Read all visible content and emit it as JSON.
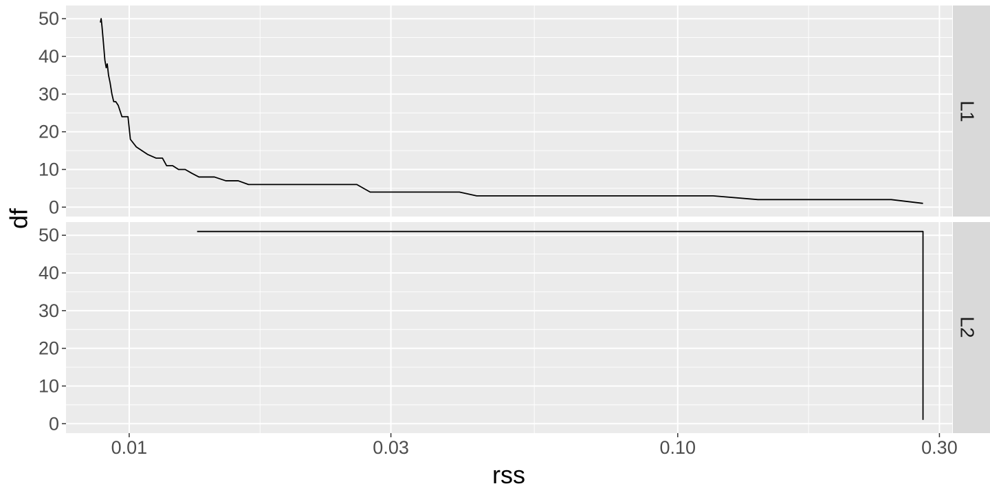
{
  "chart_data": {
    "type": "line",
    "xlabel": "rss",
    "ylabel": "df",
    "x_scale": "log10",
    "x_ticks": [
      0.01,
      0.03,
      0.1,
      0.3
    ],
    "x_tick_labels": [
      "0.01",
      "0.03",
      "0.10",
      "0.30"
    ],
    "y_ticks": [
      0,
      10,
      20,
      30,
      40,
      50
    ],
    "y_tick_labels": [
      "0",
      "10",
      "20",
      "30",
      "40",
      "50"
    ],
    "xlim": [
      0.00767,
      0.3165
    ],
    "ylim": [
      -2.5,
      53.5
    ],
    "grid": true,
    "line_color": "#000000",
    "panel_background": "#ebebeb",
    "grid_color": "#ffffff",
    "strip_background": "#d9d9d9",
    "panels": [
      {
        "facet": "L1",
        "x": [
          0.00886,
          0.00889,
          0.00892,
          0.00897,
          0.00903,
          0.00908,
          0.00912,
          0.00917,
          0.00923,
          0.0093,
          0.00937,
          0.00945,
          0.00955,
          0.0097,
          0.00985,
          0.00995,
          0.01005,
          0.0103,
          0.0108,
          0.0112,
          0.0115,
          0.0117,
          0.012,
          0.0123,
          0.01265,
          0.013,
          0.0134,
          0.0138,
          0.0143,
          0.015,
          0.0158,
          0.0165,
          0.017,
          0.0176,
          0.018,
          0.026,
          0.0275,
          0.04,
          0.043,
          0.116,
          0.14,
          0.245,
          0.28
        ],
        "y": [
          49,
          50,
          48,
          44,
          39,
          37,
          38,
          35,
          33,
          30,
          28,
          28,
          27,
          24,
          24,
          24,
          18,
          16,
          14,
          13,
          13,
          11,
          11,
          10,
          10,
          9,
          8,
          8,
          8,
          7,
          7,
          6,
          6,
          6,
          6,
          6,
          4,
          4,
          3,
          3,
          2,
          2,
          1
        ]
      },
      {
        "facet": "L2",
        "x": [
          0.0133,
          0.28,
          0.28
        ],
        "y": [
          51,
          51,
          1
        ]
      }
    ]
  }
}
